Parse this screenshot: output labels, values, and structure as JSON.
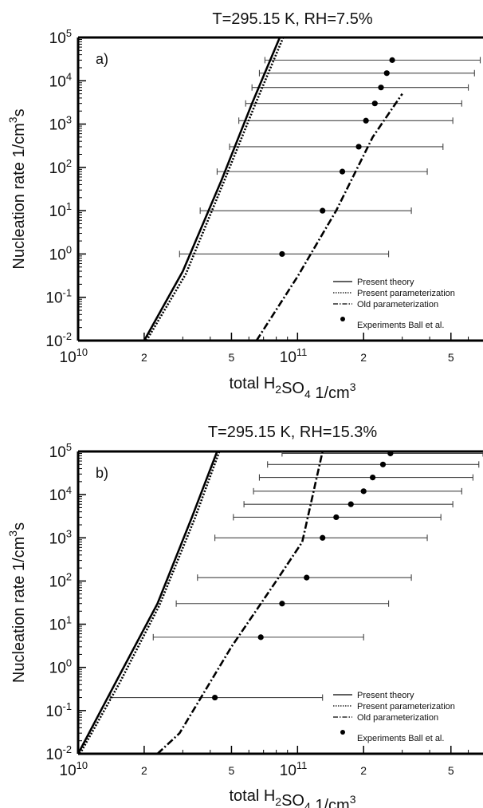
{
  "chart_data": [
    {
      "type": "line",
      "title": "T=295.15 K, RH=7.5%",
      "panel_label": "a)",
      "xlabel": "total H2SO4 1/cm3",
      "ylabel": "Nucleation rate 1/cm3s",
      "xscale": "log",
      "yscale": "log",
      "xlim": [
        10000000000.0,
        700000000000.0
      ],
      "ylim": [
        0.01,
        100000
      ],
      "x_ticks": [
        {
          "v": 10000000000.0,
          "label": "10",
          "exp": "10"
        },
        {
          "v": 20000000000.0,
          "label": "2"
        },
        {
          "v": 50000000000.0,
          "label": "5"
        },
        {
          "v": 100000000000.0,
          "label": "10",
          "exp": "11"
        },
        {
          "v": 200000000000.0,
          "label": "2"
        },
        {
          "v": 500000000000.0,
          "label": "5"
        }
      ],
      "y_ticks": [
        {
          "v": 0.01,
          "exp": "-2"
        },
        {
          "v": 0.1,
          "exp": "-1"
        },
        {
          "v": 1,
          "exp": "0"
        },
        {
          "v": 10,
          "exp": "1"
        },
        {
          "v": 100,
          "exp": "2"
        },
        {
          "v": 1000,
          "exp": "3"
        },
        {
          "v": 10000,
          "exp": "4"
        },
        {
          "v": 100000,
          "exp": "5"
        }
      ],
      "legend_position": "bottom-right",
      "series": [
        {
          "name": "Present theory",
          "style": "solid",
          "x": [
            20000000000.0,
            30000000000.0,
            45000000000.0,
            62000000000.0,
            83000000000.0
          ],
          "y": [
            0.01,
            0.4,
            50,
            3000,
            100000
          ]
        },
        {
          "name": "Present parameterization",
          "style": "dotted",
          "x": [
            20500000000.0,
            31000000000.0,
            46000000000.0,
            64000000000.0,
            86000000000.0
          ],
          "y": [
            0.01,
            0.35,
            45,
            2800,
            100000
          ]
        },
        {
          "name": "Old parameterization",
          "style": "dashdot",
          "x": [
            65000000000.0,
            100000000000.0,
            150000000000.0,
            220000000000.0,
            300000000000.0
          ],
          "y": [
            0.01,
            0.3,
            10,
            500,
            5000
          ]
        }
      ],
      "experiments": {
        "name": "Experiments Ball et al.",
        "points": [
          {
            "x": 85000000000.0,
            "y": 1,
            "xmin": 29000000000.0,
            "xmax": 260000000000.0
          },
          {
            "x": 130000000000.0,
            "y": 10,
            "xmin": 36000000000.0,
            "xmax": 330000000000.0
          },
          {
            "x": 160000000000.0,
            "y": 80,
            "xmin": 43000000000.0,
            "xmax": 390000000000.0
          },
          {
            "x": 190000000000.0,
            "y": 300,
            "xmin": 49000000000.0,
            "xmax": 460000000000.0
          },
          {
            "x": 205000000000.0,
            "y": 1200,
            "xmin": 54000000000.0,
            "xmax": 510000000000.0
          },
          {
            "x": 225000000000.0,
            "y": 3000,
            "xmin": 58000000000.0,
            "xmax": 560000000000.0
          },
          {
            "x": 240000000000.0,
            "y": 7000,
            "xmin": 62000000000.0,
            "xmax": 600000000000.0
          },
          {
            "x": 255000000000.0,
            "y": 15000,
            "xmin": 67000000000.0,
            "xmax": 640000000000.0
          },
          {
            "x": 270000000000.0,
            "y": 30000,
            "xmin": 71000000000.0,
            "xmax": 680000000000.0
          }
        ]
      }
    },
    {
      "type": "line",
      "title": "T=295.15 K, RH=15.3%",
      "panel_label": "b)",
      "xlabel": "total H2SO4 1/cm3",
      "ylabel": "Nucleation rate 1/cm3s",
      "xscale": "log",
      "yscale": "log",
      "xlim": [
        10000000000.0,
        700000000000.0
      ],
      "ylim": [
        0.01,
        100000
      ],
      "x_ticks": [
        {
          "v": 10000000000.0,
          "label": "10",
          "exp": "10"
        },
        {
          "v": 20000000000.0,
          "label": "2"
        },
        {
          "v": 50000000000.0,
          "label": "5"
        },
        {
          "v": 100000000000.0,
          "label": "10",
          "exp": "11"
        },
        {
          "v": 200000000000.0,
          "label": "2"
        },
        {
          "v": 500000000000.0,
          "label": "5"
        }
      ],
      "y_ticks": [
        {
          "v": 0.01,
          "exp": "-2"
        },
        {
          "v": 0.1,
          "exp": "-1"
        },
        {
          "v": 1,
          "exp": "0"
        },
        {
          "v": 10,
          "exp": "1"
        },
        {
          "v": 100,
          "exp": "2"
        },
        {
          "v": 1000,
          "exp": "3"
        },
        {
          "v": 10000,
          "exp": "4"
        },
        {
          "v": 100000,
          "exp": "5"
        }
      ],
      "legend_position": "bottom-right",
      "series": [
        {
          "name": "Present theory",
          "style": "solid",
          "x": [
            10000000000.0,
            15000000000.0,
            23000000000.0,
            33000000000.0,
            43000000000.0
          ],
          "y": [
            0.01,
            0.5,
            30,
            3000,
            100000
          ]
        },
        {
          "name": "Present parameterization",
          "style": "dotted",
          "x": [
            10200000000.0,
            15500000000.0,
            23500000000.0,
            34000000000.0,
            44000000000.0
          ],
          "y": [
            0.01,
            0.45,
            28,
            2800,
            100000
          ]
        },
        {
          "name": "Old parameterization",
          "style": "dashdot",
          "x": [
            23000000000.0,
            29000000000.0,
            50000000000.0,
            80000000000.0,
            105000000000.0,
            130000000000.0
          ],
          "y": [
            0.01,
            0.03,
            3,
            100,
            800,
            100000
          ]
        }
      ],
      "experiments": {
        "name": "Experiments Ball et al.",
        "points": [
          {
            "x": 42000000000.0,
            "y": 0.2,
            "xmin": 14000000000.0,
            "xmax": 130000000000.0
          },
          {
            "x": 68000000000.0,
            "y": 5,
            "xmin": 22000000000.0,
            "xmax": 200000000000.0
          },
          {
            "x": 85000000000.0,
            "y": 30,
            "xmin": 28000000000.0,
            "xmax": 260000000000.0
          },
          {
            "x": 110000000000.0,
            "y": 120,
            "xmin": 35000000000.0,
            "xmax": 330000000000.0
          },
          {
            "x": 130000000000.0,
            "y": 1000,
            "xmin": 42000000000.0,
            "xmax": 390000000000.0
          },
          {
            "x": 150000000000.0,
            "y": 3000,
            "xmin": 51000000000.0,
            "xmax": 450000000000.0
          },
          {
            "x": 175000000000.0,
            "y": 6000,
            "xmin": 57000000000.0,
            "xmax": 510000000000.0
          },
          {
            "x": 200000000000.0,
            "y": 12000,
            "xmin": 63000000000.0,
            "xmax": 560000000000.0
          },
          {
            "x": 220000000000.0,
            "y": 25000,
            "xmin": 67000000000.0,
            "xmax": 630000000000.0
          },
          {
            "x": 245000000000.0,
            "y": 50000,
            "xmin": 73000000000.0,
            "xmax": 670000000000.0
          },
          {
            "x": 265000000000.0,
            "y": 90000,
            "xmin": 85000000000.0,
            "xmax": 700000000000.0
          }
        ]
      }
    }
  ]
}
